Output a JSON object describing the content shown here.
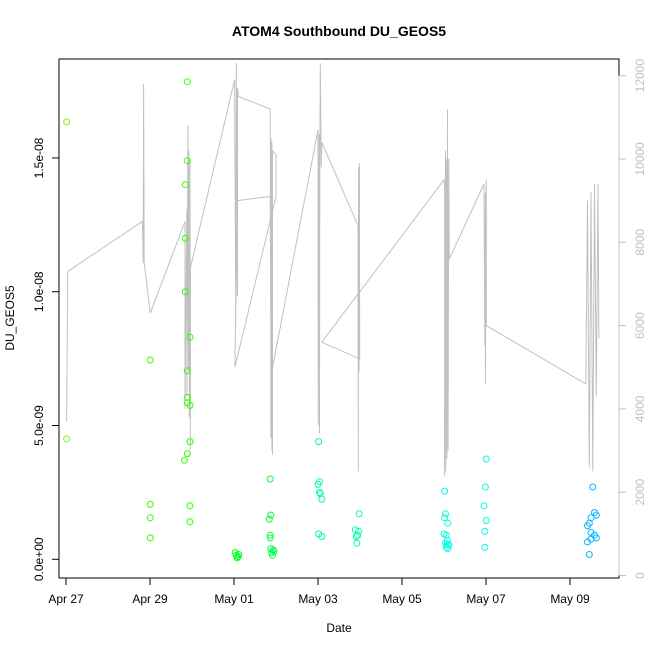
{
  "chart_data": {
    "type": "scatter",
    "title": "ATOM4 Southbound DU_GEOS5",
    "xlabel": "Date",
    "ylabel": "DU_GEOS5",
    "xlim": [
      "2015-04-26T20:00",
      "2015-05-10T04:00"
    ],
    "ylim": [
      -7e-10,
      1.87e-08
    ],
    "y2lim": [
      -60,
      12400
    ],
    "x_ticks": [
      {
        "date": "2015-04-27",
        "label": "Apr 27"
      },
      {
        "date": "2015-04-29",
        "label": "Apr 29"
      },
      {
        "date": "2015-05-01",
        "label": "May 01"
      },
      {
        "date": "2015-05-03",
        "label": "May 03"
      },
      {
        "date": "2015-05-05",
        "label": "May 05"
      },
      {
        "date": "2015-05-07",
        "label": "May 07"
      },
      {
        "date": "2015-05-09",
        "label": "May 09"
      }
    ],
    "y_ticks": [
      {
        "value": 0,
        "label": "0.0e+00"
      },
      {
        "value": 5e-09,
        "label": "5.0e-09"
      },
      {
        "value": 1e-08,
        "label": "1.0e-08"
      },
      {
        "value": 1.5e-08,
        "label": "1.5e-08"
      }
    ],
    "y2_ticks": [
      {
        "value": 0,
        "label": "0"
      },
      {
        "value": 2000,
        "label": "2000"
      },
      {
        "value": 4000,
        "label": "4000"
      },
      {
        "value": 6000,
        "label": "6000"
      },
      {
        "value": 8000,
        "label": "8000"
      },
      {
        "value": 10000,
        "label": "10000"
      },
      {
        "value": 12000,
        "label": "12000"
      }
    ],
    "grid": false,
    "colors": {
      "altitude_line": "#c0c0c0",
      "axis": "#000000",
      "right_axis": "#c0c0c0"
    },
    "series": [
      {
        "kind": "points",
        "color": "#80ff00",
        "points": [
          [
            "2015-04-27T00:20",
            1.635e-08
          ],
          [
            "2015-04-27T00:20",
            4.5e-09
          ]
        ]
      },
      {
        "kind": "points",
        "color": "#33ff00",
        "points": [
          [
            "2015-04-29T00:10",
            7.45e-09
          ],
          [
            "2015-04-29T00:10",
            2.05e-09
          ],
          [
            "2015-04-29T00:10",
            1.55e-09
          ],
          [
            "2015-04-29T00:10",
            8e-10
          ],
          [
            "2015-04-29T19:40",
            3.7e-09
          ],
          [
            "2015-04-29T20:10",
            1.4e-08
          ],
          [
            "2015-04-29T20:10",
            1.2e-08
          ],
          [
            "2015-04-29T20:10",
            1e-08
          ],
          [
            "2015-04-29T21:20",
            1.785e-08
          ],
          [
            "2015-04-29T21:20",
            1.49e-08
          ],
          [
            "2015-04-29T21:20",
            7.05e-09
          ],
          [
            "2015-04-29T21:20",
            6.05e-09
          ],
          [
            "2015-04-29T21:20",
            5.85e-09
          ],
          [
            "2015-04-29T21:20",
            3.95e-09
          ],
          [
            "2015-04-29T22:50",
            8.3e-09
          ],
          [
            "2015-04-29T22:50",
            5.75e-09
          ],
          [
            "2015-04-29T22:50",
            4.4e-09
          ],
          [
            "2015-04-29T22:50",
            2e-09
          ],
          [
            "2015-04-29T22:50",
            1.4e-09
          ]
        ]
      },
      {
        "kind": "points",
        "color": "#00ff19",
        "points": [
          [
            "2015-05-01T00:40",
            2.5e-10
          ],
          [
            "2015-05-01T01:20",
            1.5e-10
          ],
          [
            "2015-05-01T01:50",
            5e-11
          ],
          [
            "2015-05-01T02:20",
            1e-10
          ],
          [
            "2015-05-01T02:40",
            1.8e-10
          ]
        ]
      },
      {
        "kind": "points",
        "color": "#00ff4d",
        "points": [
          [
            "2015-05-01T20:40",
            3e-09
          ],
          [
            "2015-05-01T20:10",
            1.5e-09
          ],
          [
            "2015-05-01T21:00",
            1.65e-09
          ],
          [
            "2015-05-01T20:40",
            9e-10
          ],
          [
            "2015-05-01T20:40",
            8e-10
          ],
          [
            "2015-05-01T21:00",
            4e-10
          ],
          [
            "2015-05-01T21:30",
            2.5e-10
          ],
          [
            "2015-05-01T22:00",
            1.5e-10
          ],
          [
            "2015-05-01T22:50",
            3e-10
          ],
          [
            "2015-05-01T22:20",
            3.5e-10
          ]
        ]
      },
      {
        "kind": "points",
        "color": "#00ffa0",
        "points": [
          [
            "2015-05-03T00:20",
            4.4e-09
          ],
          [
            "2015-05-03T00:00",
            2.8e-09
          ],
          [
            "2015-05-03T00:50",
            2.9e-09
          ],
          [
            "2015-05-03T00:50",
            2.5e-09
          ],
          [
            "2015-05-03T01:20",
            2.45e-09
          ],
          [
            "2015-05-03T02:10",
            2.25e-09
          ],
          [
            "2015-05-03T00:20",
            9.5e-10
          ],
          [
            "2015-05-03T02:10",
            8.5e-10
          ],
          [
            "2015-05-03T21:20",
            1.1e-09
          ],
          [
            "2015-05-03T23:10",
            1.05e-09
          ],
          [
            "2015-05-03T23:30",
            1.7e-09
          ],
          [
            "2015-05-03T21:50",
            8.5e-10
          ],
          [
            "2015-05-03T22:40",
            9e-10
          ],
          [
            "2015-05-03T22:10",
            6e-10
          ]
        ]
      },
      {
        "kind": "points",
        "color": "#00ffe0",
        "points": [
          [
            "2015-05-06T00:20",
            2.55e-09
          ],
          [
            "2015-05-06T00:50",
            1.7e-09
          ],
          [
            "2015-05-06T00:20",
            1.55e-09
          ],
          [
            "2015-05-06T02:10",
            1.35e-09
          ],
          [
            "2015-05-06T00:00",
            9.5e-10
          ],
          [
            "2015-05-06T01:20",
            9e-10
          ],
          [
            "2015-05-06T01:50",
            7e-10
          ],
          [
            "2015-05-06T00:50",
            6e-10
          ],
          [
            "2015-05-06T01:50",
            5.5e-10
          ],
          [
            "2015-05-06T02:40",
            5.5e-10
          ],
          [
            "2015-05-06T01:20",
            4.5e-10
          ],
          [
            "2015-05-06T02:10",
            4e-10
          ],
          [
            "2015-05-06T22:50",
            2e-09
          ],
          [
            "2015-05-06T23:40",
            2.7e-09
          ],
          [
            "2015-05-07T00:10",
            3.75e-09
          ],
          [
            "2015-05-07T00:10",
            1.45e-09
          ],
          [
            "2015-05-06T23:20",
            1.05e-09
          ],
          [
            "2015-05-06T23:20",
            4.5e-10
          ]
        ]
      },
      {
        "kind": "points",
        "color": "#00b8ff",
        "points": [
          [
            "2015-05-09T13:00",
            2.7e-09
          ],
          [
            "2015-05-09T14:00",
            1.75e-09
          ],
          [
            "2015-05-09T15:00",
            1.65e-09
          ],
          [
            "2015-05-09T12:00",
            1.55e-09
          ],
          [
            "2015-05-09T11:00",
            1.35e-09
          ],
          [
            "2015-05-09T10:00",
            1.25e-09
          ],
          [
            "2015-05-09T12:00",
            1e-09
          ],
          [
            "2015-05-09T14:00",
            9e-10
          ],
          [
            "2015-05-09T15:00",
            8e-10
          ],
          [
            "2015-05-09T10:00",
            6.5e-10
          ],
          [
            "2015-05-09T12:00",
            7.5e-10
          ],
          [
            "2015-05-09T11:00",
            1.8e-10
          ]
        ]
      },
      {
        "kind": "line",
        "axis": "right",
        "color": "#c0c0c0",
        "points": [
          [
            "2015-04-27T00:20",
            3700
          ],
          [
            "2015-04-27T01:00",
            7300
          ],
          [
            "2015-04-28T19:40",
            8500
          ],
          [
            "2015-04-28T20:10",
            7500
          ],
          [
            "2015-04-28T20:20",
            11800
          ],
          [
            "2015-04-28T20:40",
            7500
          ],
          [
            "2015-04-29T00:10",
            6300
          ],
          [
            "2015-04-29T20:00",
            8500
          ],
          [
            "2015-04-29T20:00",
            4000
          ],
          [
            "2015-04-29T21:00",
            8800
          ],
          [
            "2015-04-29T21:10",
            4300
          ],
          [
            "2015-04-29T21:40",
            10800
          ],
          [
            "2015-04-29T22:00",
            4900
          ],
          [
            "2015-04-29T22:10",
            10200
          ],
          [
            "2015-04-29T22:30",
            3800
          ],
          [
            "2015-04-29T22:50",
            10000
          ],
          [
            "2015-04-29T23:00",
            3000
          ],
          [
            "2015-04-29T23:10",
            7400
          ],
          [
            "2015-05-01T00:20",
            11900
          ],
          [
            "2015-05-01T01:00",
            6000
          ],
          [
            "2015-05-01T01:20",
            12300
          ],
          [
            "2015-05-01T02:00",
            6700
          ],
          [
            "2015-05-01T02:00",
            11700
          ],
          [
            "2015-05-01T02:30",
            11500
          ],
          [
            "2015-05-01T20:40",
            11200
          ],
          [
            "2015-05-01T21:00",
            6000
          ],
          [
            "2015-05-01T21:00",
            3300
          ],
          [
            "2015-05-01T21:10",
            10500
          ],
          [
            "2015-05-01T21:40",
            3000
          ],
          [
            "2015-05-01T21:40",
            10400
          ],
          [
            "2015-05-01T22:00",
            2900
          ],
          [
            "2015-05-01T22:00",
            10200
          ],
          [
            "2015-05-02T00:00",
            10100
          ],
          [
            "2015-05-02T00:00",
            9100
          ],
          [
            "2015-05-01T00:30",
            5000
          ],
          [
            "2015-05-01T02:00",
            9000
          ],
          [
            "2015-05-01T20:40",
            9100
          ],
          [
            "2015-05-01T21:10",
            4800
          ],
          [
            "2015-05-03T00:00",
            10700
          ],
          [
            "2015-05-03T00:10",
            3600
          ],
          [
            "2015-05-03T00:40",
            10600
          ],
          [
            "2015-05-03T00:50",
            3400
          ],
          [
            "2015-05-03T01:00",
            9700
          ],
          [
            "2015-05-03T01:20",
            12300
          ],
          [
            "2015-05-03T01:50",
            9800
          ],
          [
            "2015-05-03T02:10",
            10400
          ],
          [
            "2015-05-03T22:50",
            8400
          ],
          [
            "2015-05-03T23:00",
            2500
          ],
          [
            "2015-05-03T23:10",
            9800
          ],
          [
            "2015-05-03T23:30",
            4900
          ],
          [
            "2015-05-03T23:40",
            9900
          ],
          [
            "2015-05-03T23:50",
            5200
          ],
          [
            "2015-05-03T02:10",
            5600
          ],
          [
            "2015-05-06T00:00",
            9500
          ],
          [
            "2015-05-06T00:20",
            9400
          ],
          [
            "2015-05-06T00:20",
            2400
          ],
          [
            "2015-05-06T00:50",
            10200
          ],
          [
            "2015-05-06T01:00",
            2500
          ],
          [
            "2015-05-06T01:20",
            10000
          ],
          [
            "2015-05-06T01:40",
            2800
          ],
          [
            "2015-05-06T02:00",
            11200
          ],
          [
            "2015-05-06T02:20",
            3000
          ],
          [
            "2015-05-06T02:40",
            10000
          ],
          [
            "2015-05-06T03:00",
            7600
          ],
          [
            "2015-05-06T22:50",
            9400
          ],
          [
            "2015-05-06T23:20",
            5500
          ],
          [
            "2015-05-06T23:40",
            9200
          ],
          [
            "2015-05-06T23:40",
            4600
          ],
          [
            "2015-05-07T00:10",
            9500
          ],
          [
            "2015-05-07T00:10",
            6000
          ],
          [
            "2015-05-09T09:00",
            4600
          ],
          [
            "2015-05-09T10:00",
            9000
          ],
          [
            "2015-05-09T11:00",
            2600
          ],
          [
            "2015-05-09T12:00",
            9200
          ],
          [
            "2015-05-09T13:00",
            2500
          ],
          [
            "2015-05-09T14:00",
            9400
          ],
          [
            "2015-05-09T15:00",
            4300
          ],
          [
            "2015-05-09T16:00",
            9400
          ],
          [
            "2015-05-09T16:30",
            5700
          ]
        ]
      }
    ]
  }
}
